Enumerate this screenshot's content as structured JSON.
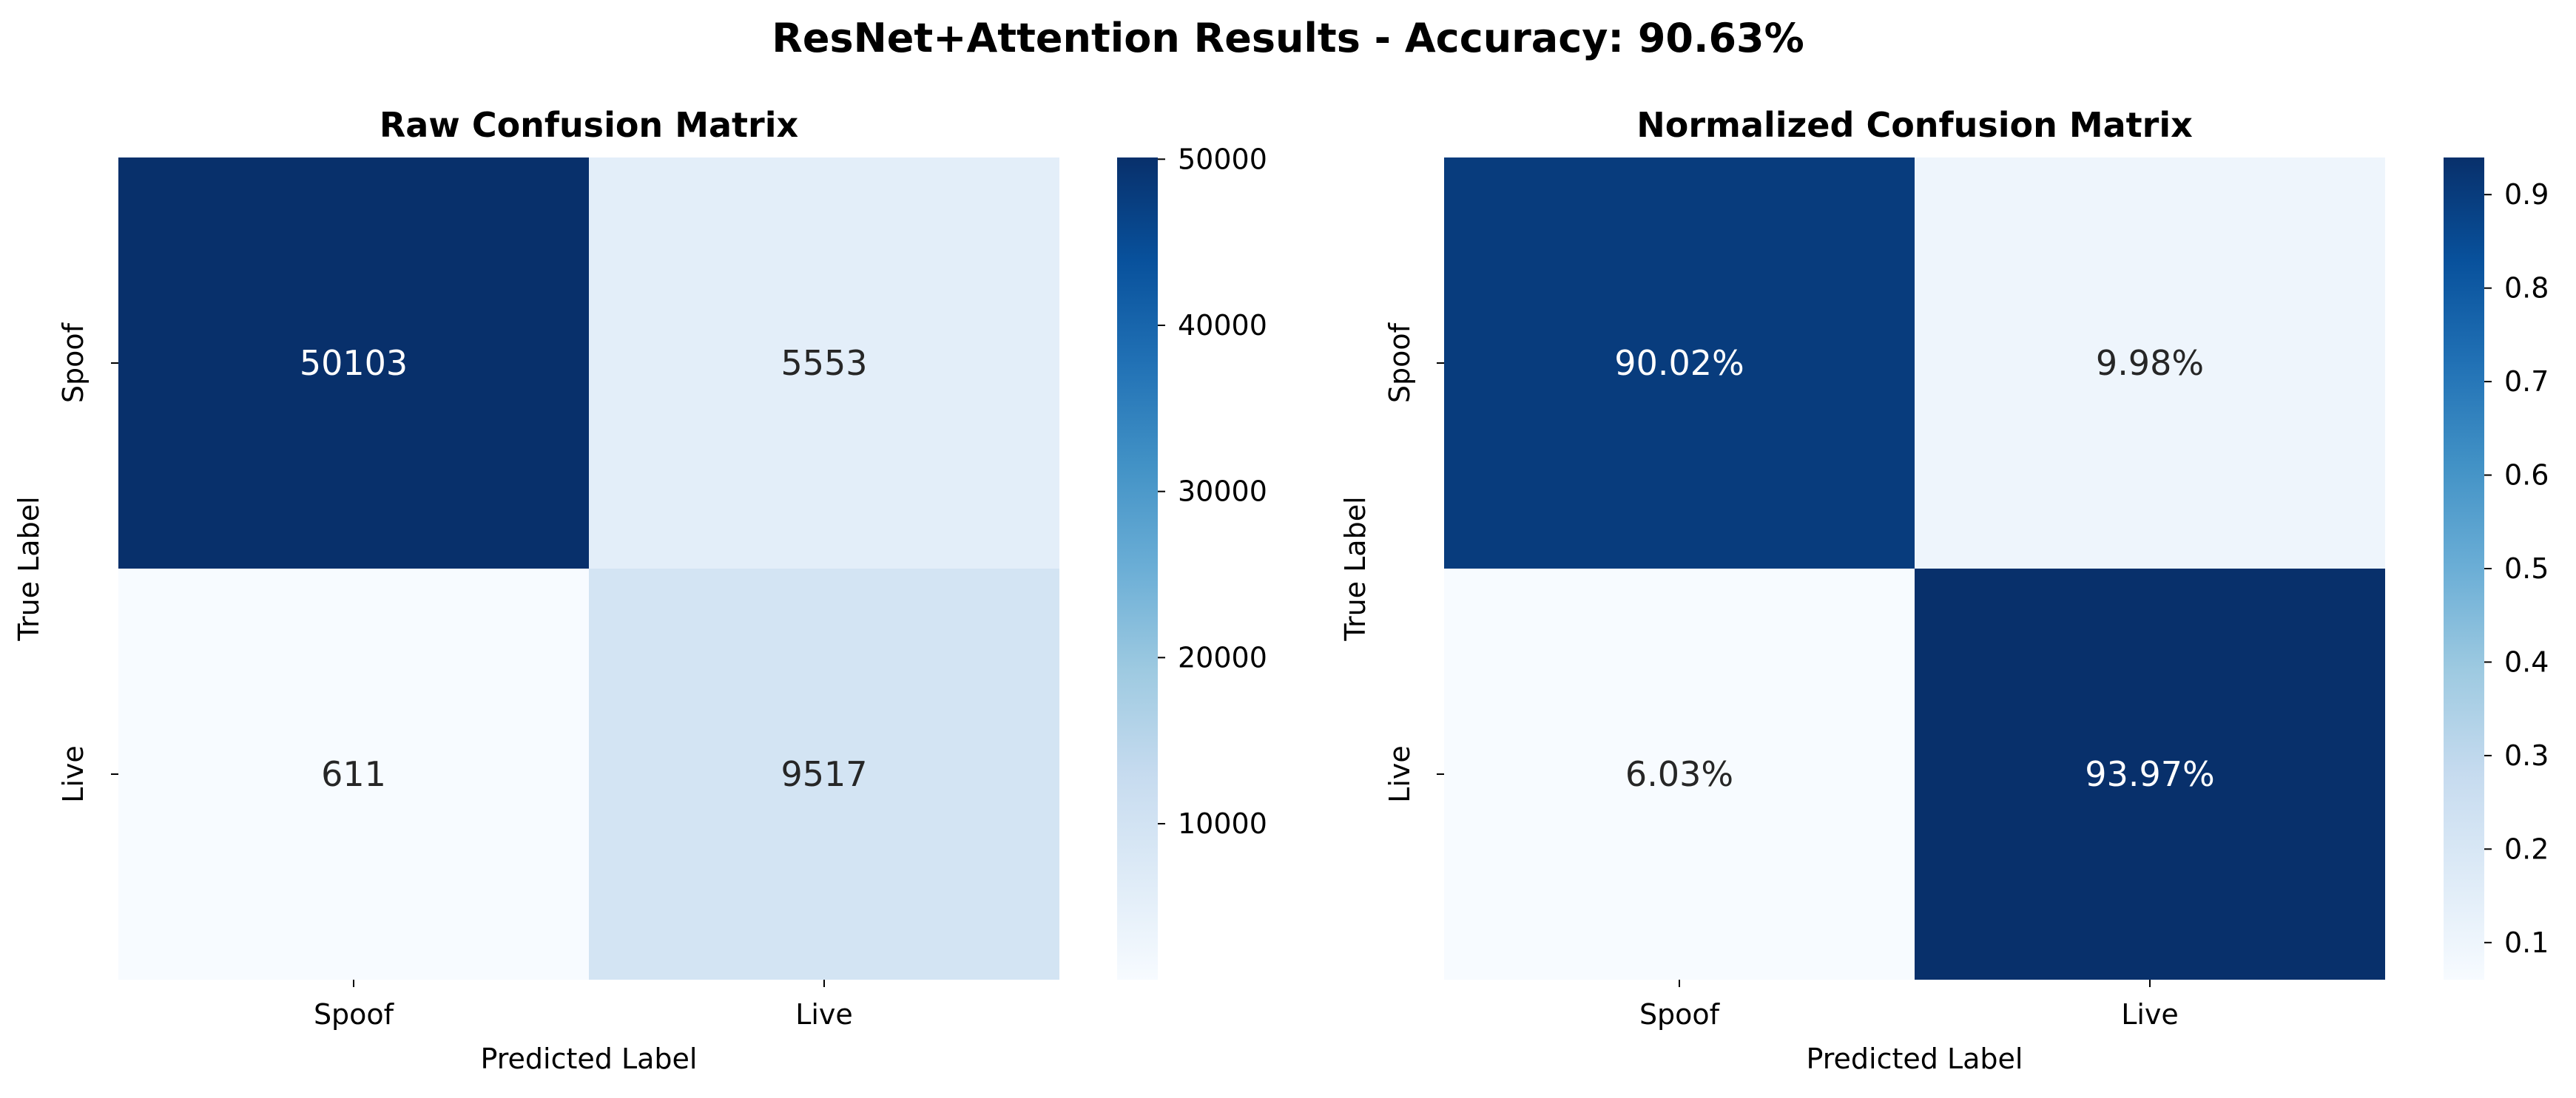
{
  "figure": {
    "suptitle": "ResNet+Attention Results - Accuracy: 90.63%"
  },
  "chart_data": [
    {
      "type": "heatmap",
      "title": "Raw Confusion Matrix",
      "xlabel": "Predicted Label",
      "ylabel": "True Label",
      "x_categories": [
        "Spoof",
        "Live"
      ],
      "y_categories": [
        "Spoof",
        "Live"
      ],
      "values": [
        [
          50103,
          5553
        ],
        [
          611,
          9517
        ]
      ],
      "cell_labels": [
        [
          "50103",
          "5553"
        ],
        [
          "611",
          "9517"
        ]
      ],
      "colorbar": {
        "range": [
          611,
          50103
        ],
        "ticks": [
          10000,
          20000,
          30000,
          40000,
          50000
        ],
        "tick_labels": [
          "10000",
          "20000",
          "30000",
          "40000",
          "50000"
        ]
      },
      "colormap": "Blues"
    },
    {
      "type": "heatmap",
      "title": "Normalized Confusion Matrix",
      "xlabel": "Predicted Label",
      "ylabel": "True Label",
      "x_categories": [
        "Spoof",
        "Live"
      ],
      "y_categories": [
        "Spoof",
        "Live"
      ],
      "values": [
        [
          0.9002,
          0.0998
        ],
        [
          0.0603,
          0.9397
        ]
      ],
      "cell_labels": [
        [
          "90.02%",
          "9.98%"
        ],
        [
          "6.03%",
          "93.97%"
        ]
      ],
      "colorbar": {
        "range": [
          0.0603,
          0.9397
        ],
        "ticks": [
          0.1,
          0.2,
          0.3,
          0.4,
          0.5,
          0.6,
          0.7,
          0.8,
          0.9
        ],
        "tick_labels": [
          "0.1",
          "0.2",
          "0.3",
          "0.4",
          "0.5",
          "0.6",
          "0.7",
          "0.8",
          "0.9"
        ]
      },
      "colormap": "Blues"
    }
  ]
}
